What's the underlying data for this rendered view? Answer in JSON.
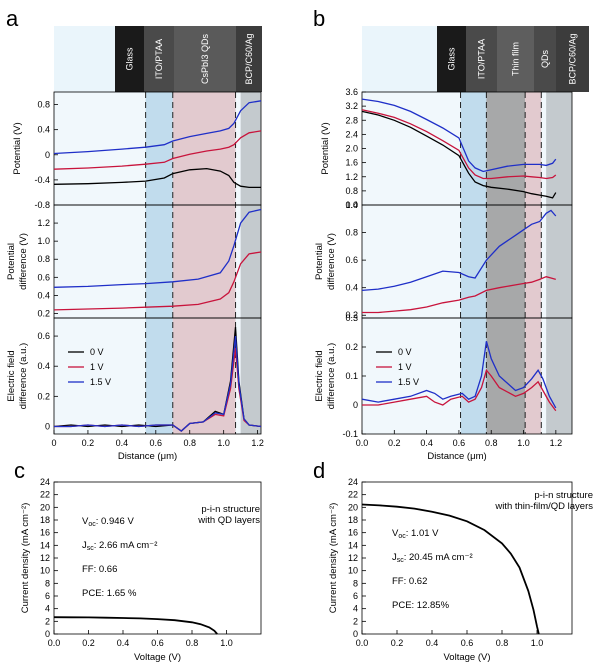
{
  "chart_data": [
    {
      "id": "a",
      "panel_label": "a",
      "type": "line",
      "layers": [
        "Glass",
        "ITO/PTAA",
        "CsPbI3 QDs",
        "BCP/C60/Ag"
      ],
      "regions": [
        {
          "name": "ITO/PTAA",
          "x": [
            0.54,
            0.7
          ],
          "color": "#b9d7ea"
        },
        {
          "name": "CsPbI3 QDs",
          "x": [
            0.7,
            1.07
          ],
          "color": "#dfc2c7"
        },
        {
          "name": "BCP/C60/Ag",
          "x": [
            1.1,
            1.22
          ],
          "color": "#bcc2c5"
        }
      ],
      "xlabel": "Distance (μm)",
      "xlim": [
        0,
        1.22
      ],
      "xticks": [
        "0",
        "0.2",
        "0.4",
        "0.6",
        "0.8",
        "1.0",
        "1.2"
      ],
      "xtick_values": [
        0,
        0.2,
        0.4,
        0.6,
        0.8,
        1.0,
        1.2
      ],
      "legend": [
        "0 V",
        "1 V",
        "1.5 V"
      ],
      "colors": {
        "0 V": "#000000",
        "1 V": "#c8143c",
        "1.5 V": "#1f2fc8"
      },
      "subplots": [
        {
          "ylabel": [
            "Potential (V)"
          ],
          "ylim": [
            -0.8,
            1.0
          ],
          "yticks": [
            -0.8,
            -0.4,
            0,
            0.4,
            0.8
          ],
          "ytick_labels": [
            "-0.8",
            "-0.4",
            "0",
            "0.4",
            "0.8"
          ],
          "x": [
            0,
            0.2,
            0.4,
            0.54,
            0.65,
            0.7,
            0.8,
            0.9,
            0.98,
            1.03,
            1.06,
            1.1,
            1.15,
            1.22
          ],
          "series": [
            {
              "name": "0 V",
              "values": [
                -0.47,
                -0.46,
                -0.44,
                -0.42,
                -0.37,
                -0.3,
                -0.24,
                -0.22,
                -0.26,
                -0.33,
                -0.44,
                -0.5,
                -0.52,
                -0.52
              ]
            },
            {
              "name": "1 V",
              "values": [
                -0.23,
                -0.21,
                -0.18,
                -0.15,
                -0.12,
                -0.06,
                0.01,
                0.06,
                0.09,
                0.12,
                0.16,
                0.27,
                0.35,
                0.38
              ]
            },
            {
              "name": "1.5 V",
              "values": [
                0.02,
                0.05,
                0.09,
                0.12,
                0.16,
                0.22,
                0.29,
                0.34,
                0.38,
                0.42,
                0.5,
                0.7,
                0.83,
                0.86
              ]
            }
          ]
        },
        {
          "ylabel": [
            "Potential",
            "difference (V)"
          ],
          "ylim": [
            0.15,
            1.4
          ],
          "yticks": [
            0.2,
            0.4,
            0.6,
            0.8,
            1.0,
            1.2
          ],
          "ytick_labels": [
            "0.2",
            "0.4",
            "0.6",
            "0.8",
            "1.0",
            "1.2"
          ],
          "x": [
            0,
            0.2,
            0.4,
            0.54,
            0.7,
            0.85,
            0.98,
            1.03,
            1.06,
            1.1,
            1.15,
            1.22
          ],
          "series": [
            {
              "name": "1 V",
              "values": [
                0.24,
                0.25,
                0.26,
                0.27,
                0.28,
                0.3,
                0.36,
                0.43,
                0.55,
                0.75,
                0.86,
                0.88
              ]
            },
            {
              "name": "1.5 V",
              "values": [
                0.49,
                0.5,
                0.52,
                0.53,
                0.55,
                0.58,
                0.65,
                0.78,
                0.95,
                1.2,
                1.32,
                1.35
              ]
            }
          ]
        },
        {
          "ylabel": [
            "Electric field",
            "difference (a.u.)"
          ],
          "ylim": [
            -0.05,
            0.72
          ],
          "yticks": [
            0,
            0.2,
            0.4,
            0.6
          ],
          "ytick_labels": [
            "0",
            "0.2",
            "0.4",
            "0.6"
          ],
          "x": [
            0,
            0.1,
            0.2,
            0.3,
            0.4,
            0.5,
            0.6,
            0.7,
            0.75,
            0.8,
            0.88,
            0.95,
            1.0,
            1.04,
            1.07,
            1.09,
            1.12,
            1.15,
            1.22
          ],
          "series": [
            {
              "name": "0 V",
              "values": [
                0,
                0.01,
                0,
                0.01,
                0,
                0.01,
                0,
                0.01,
                -0.03,
                0.02,
                0.03,
                0.1,
                0.08,
                0.3,
                0.66,
                0.3,
                0.05,
                0.01,
                0
              ]
            },
            {
              "name": "1 V",
              "values": [
                0,
                0,
                0.01,
                0,
                0.01,
                0,
                0.01,
                0.01,
                -0.03,
                0.02,
                0.03,
                0.08,
                0.07,
                0.25,
                0.52,
                0.25,
                0.04,
                0.01,
                0
              ]
            },
            {
              "name": "1.5 V",
              "values": [
                0,
                0,
                0.01,
                0,
                0.01,
                0,
                0.01,
                0.01,
                -0.03,
                0.02,
                0.03,
                0.09,
                0.08,
                0.28,
                0.6,
                0.28,
                0.05,
                0.01,
                0
              ]
            }
          ]
        }
      ]
    },
    {
      "id": "b",
      "panel_label": "b",
      "type": "line",
      "layers": [
        "Glass",
        "ITO/PTAA",
        "Thin film",
        "QDs",
        "BCP/C60/Ag"
      ],
      "regions": [
        {
          "name": "ITO/PTAA",
          "x": [
            0.61,
            0.77
          ],
          "color": "#b9d7ea"
        },
        {
          "name": "Thin film",
          "x": [
            0.77,
            1.01
          ],
          "color": "#9a9a9a"
        },
        {
          "name": "QDs",
          "x": [
            1.01,
            1.11
          ],
          "color": "#dfc2c7"
        },
        {
          "name": "BCP/C60/Ag",
          "x": [
            1.14,
            1.3
          ],
          "color": "#bcc2c5"
        }
      ],
      "xlabel": "Distance (μm)",
      "xlim": [
        0,
        1.3
      ],
      "xticks": [
        "0.0",
        "0.2",
        "0.4",
        "0.6",
        "0.8",
        "1.0",
        "1.2"
      ],
      "xtick_values": [
        0,
        0.2,
        0.4,
        0.6,
        0.8,
        1.0,
        1.2
      ],
      "legend": [
        "0 V",
        "1 V",
        "1.5 V"
      ],
      "colors": {
        "0 V": "#000000",
        "1 V": "#c8143c",
        "1.5 V": "#1f2fc8"
      },
      "subplots": [
        {
          "ylabel": [
            "Potential (V)"
          ],
          "ylim": [
            0.4,
            3.6
          ],
          "yticks": [
            0.4,
            0.8,
            1.2,
            1.6,
            2.0,
            2.4,
            2.8,
            3.2,
            3.6
          ],
          "ytick_labels": [
            "0.4",
            "0.8",
            "1.2",
            "1.6",
            "2.0",
            "2.4",
            "2.8",
            "3.2",
            "3.6"
          ],
          "x": [
            0,
            0.1,
            0.2,
            0.3,
            0.4,
            0.5,
            0.6,
            0.66,
            0.7,
            0.75,
            0.8,
            0.9,
            1.0,
            1.05,
            1.1,
            1.14,
            1.18,
            1.2
          ],
          "series": [
            {
              "name": "0 V",
              "values": [
                3.05,
                2.95,
                2.8,
                2.6,
                2.35,
                2.1,
                1.8,
                1.3,
                1.05,
                0.95,
                0.9,
                0.85,
                0.78,
                0.72,
                0.68,
                0.65,
                0.6,
                0.75
              ]
            },
            {
              "name": "1 V",
              "values": [
                3.1,
                3.0,
                2.88,
                2.7,
                2.48,
                2.22,
                1.95,
                1.45,
                1.25,
                1.15,
                1.15,
                1.2,
                1.22,
                1.2,
                1.18,
                1.15,
                1.18,
                1.25
              ]
            },
            {
              "name": "1.5 V",
              "values": [
                3.4,
                3.33,
                3.22,
                3.05,
                2.82,
                2.58,
                2.3,
                1.65,
                1.45,
                1.35,
                1.4,
                1.5,
                1.55,
                1.55,
                1.55,
                1.52,
                1.58,
                1.7
              ]
            }
          ]
        },
        {
          "ylabel": [
            "Potential",
            "difference (V)"
          ],
          "ylim": [
            0.18,
            1.0
          ],
          "yticks": [
            0.2,
            0.4,
            0.6,
            0.8,
            1.0
          ],
          "ytick_labels": [
            "0.2",
            "0.4",
            "0.6",
            "0.8",
            "1.0"
          ],
          "x": [
            0,
            0.1,
            0.2,
            0.3,
            0.4,
            0.5,
            0.6,
            0.66,
            0.7,
            0.77,
            0.85,
            0.95,
            1.0,
            1.05,
            1.1,
            1.14,
            1.17,
            1.2
          ],
          "series": [
            {
              "name": "1 V",
              "values": [
                0.22,
                0.22,
                0.23,
                0.24,
                0.26,
                0.29,
                0.31,
                0.33,
                0.34,
                0.38,
                0.4,
                0.42,
                0.43,
                0.44,
                0.46,
                0.48,
                0.47,
                0.46
              ]
            },
            {
              "name": "1.5 V",
              "values": [
                0.38,
                0.39,
                0.41,
                0.44,
                0.48,
                0.52,
                0.51,
                0.48,
                0.47,
                0.6,
                0.7,
                0.78,
                0.82,
                0.86,
                0.88,
                0.94,
                0.96,
                0.92
              ]
            }
          ]
        },
        {
          "ylabel": [
            "Electric field",
            "difference (a.u.)"
          ],
          "ylim": [
            -0.1,
            0.3
          ],
          "yticks": [
            -0.1,
            0,
            0.1,
            0.2,
            0.3
          ],
          "ytick_labels": [
            "-0.1",
            "0",
            "0.1",
            "0.2",
            "0.3"
          ],
          "x": [
            0,
            0.1,
            0.2,
            0.3,
            0.4,
            0.45,
            0.5,
            0.55,
            0.62,
            0.66,
            0.7,
            0.74,
            0.77,
            0.8,
            0.85,
            0.95,
            1.0,
            1.05,
            1.09,
            1.12,
            1.16,
            1.2
          ],
          "series": [
            {
              "name": "1 V",
              "values": [
                0,
                0,
                0.01,
                0.02,
                0.03,
                0.01,
                0,
                0.02,
                0.03,
                0.01,
                0.02,
                0.06,
                0.12,
                0.1,
                0.06,
                0.03,
                0.04,
                0.06,
                0.08,
                0.05,
                0.01,
                -0.02
              ]
            },
            {
              "name": "1.5 V",
              "values": [
                0.02,
                0.01,
                0.02,
                0.03,
                0.05,
                0.04,
                0.02,
                0.03,
                0.04,
                0.02,
                0.03,
                0.1,
                0.22,
                0.16,
                0.1,
                0.05,
                0.06,
                0.09,
                0.12,
                0.09,
                0.03,
                -0.01
              ]
            }
          ]
        }
      ]
    },
    {
      "id": "c",
      "panel_label": "c",
      "type": "line",
      "xlabel": "Voltage (V)",
      "ylabel": "Current density (mA cm⁻²)",
      "xlim": [
        0,
        1.2
      ],
      "ylim": [
        0,
        24
      ],
      "xticks": [
        "0.0",
        "0.2",
        "0.4",
        "0.6",
        "0.8",
        "1.0"
      ],
      "xtick_values": [
        0,
        0.2,
        0.4,
        0.6,
        0.8,
        1.0
      ],
      "yticks": [
        "0",
        "2",
        "4",
        "6",
        "8",
        "10",
        "12",
        "14",
        "16",
        "18",
        "20",
        "22",
        "24"
      ],
      "ytick_values": [
        0,
        2,
        4,
        6,
        8,
        10,
        12,
        14,
        16,
        18,
        20,
        22,
        24
      ],
      "structure": [
        "p-i-n structure",
        "with QD layers"
      ],
      "metrics": {
        "voc": "0.946 V",
        "jsc": "2.66 mA cm⁻²",
        "ff": "FF: 0.66",
        "pce": "PCE: 1.65 %"
      },
      "x": [
        0,
        0.1,
        0.2,
        0.3,
        0.4,
        0.5,
        0.6,
        0.7,
        0.8,
        0.85,
        0.9,
        0.93,
        0.946
      ],
      "values": [
        2.66,
        2.64,
        2.62,
        2.58,
        2.53,
        2.46,
        2.35,
        2.18,
        1.85,
        1.55,
        1.05,
        0.5,
        0
      ]
    },
    {
      "id": "d",
      "panel_label": "d",
      "type": "line",
      "xlabel": "Voltage (V)",
      "ylabel": "Current density (mA cm⁻²)",
      "xlim": [
        0,
        1.2
      ],
      "ylim": [
        0,
        24
      ],
      "xticks": [
        "0.0",
        "0.2",
        "0.4",
        "0.6",
        "0.8",
        "1.0"
      ],
      "xtick_values": [
        0,
        0.2,
        0.4,
        0.6,
        0.8,
        1.0
      ],
      "yticks": [
        "0",
        "2",
        "4",
        "6",
        "8",
        "10",
        "12",
        "14",
        "16",
        "18",
        "20",
        "22",
        "24"
      ],
      "ytick_values": [
        0,
        2,
        4,
        6,
        8,
        10,
        12,
        14,
        16,
        18,
        20,
        22,
        24
      ],
      "structure": [
        "p-i-n structure",
        "with thin-film/QD layers"
      ],
      "metrics": {
        "voc": "1.01 V",
        "jsc": "20.45 mA cm⁻²",
        "ff": "FF: 0.62",
        "pce": "PCE: 12.85%"
      },
      "x": [
        0,
        0.1,
        0.2,
        0.3,
        0.4,
        0.5,
        0.6,
        0.7,
        0.8,
        0.85,
        0.9,
        0.95,
        0.98,
        1.0,
        1.01
      ],
      "values": [
        20.45,
        20.3,
        20.1,
        19.8,
        19.3,
        18.7,
        17.8,
        16.4,
        14.3,
        12.7,
        10.5,
        6.8,
        3.8,
        1.2,
        0
      ]
    }
  ]
}
